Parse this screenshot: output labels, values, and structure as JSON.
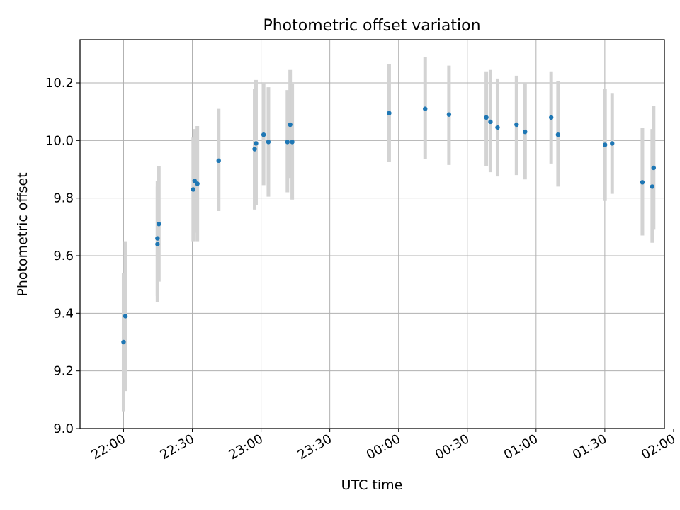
{
  "chart_data": {
    "type": "scatter",
    "title": "Photometric offset variation",
    "xlabel": "UTC time",
    "ylabel": "Photometric offset",
    "grid": true,
    "legend": "none",
    "colors": {
      "point": "#1f77b4",
      "errorbar": "#d3d3d3",
      "grid": "#b0b0b0",
      "axis": "#000000"
    },
    "x_unit": "minutes after 22:00 UTC",
    "xlim": [
      -19,
      236
    ],
    "ylim": [
      9.0,
      10.35
    ],
    "xticks": [
      {
        "label": "22:00",
        "value": 0
      },
      {
        "label": "22:30",
        "value": 30
      },
      {
        "label": "23:00",
        "value": 60
      },
      {
        "label": "23:30",
        "value": 90
      },
      {
        "label": "00:00",
        "value": 120
      },
      {
        "label": "00:30",
        "value": 150
      },
      {
        "label": "01:00",
        "value": 180
      },
      {
        "label": "01:30",
        "value": 210
      },
      {
        "label": "02:00",
        "value": 240
      }
    ],
    "yticks": [
      {
        "label": "9.0",
        "value": 9.0
      },
      {
        "label": "9.2",
        "value": 9.2
      },
      {
        "label": "9.4",
        "value": 9.4
      },
      {
        "label": "9.6",
        "value": 9.6
      },
      {
        "label": "9.8",
        "value": 9.8
      },
      {
        "label": "10.0",
        "value": 10.0
      },
      {
        "label": "10.2",
        "value": 10.2
      }
    ],
    "points": [
      {
        "t": 0.0,
        "y": 9.3,
        "lo": 9.06,
        "hi": 9.54
      },
      {
        "t": 0.8,
        "y": 9.39,
        "lo": 9.13,
        "hi": 9.65
      },
      {
        "t": 14.8,
        "y": 9.66,
        "lo": 9.46,
        "hi": 9.86
      },
      {
        "t": 14.8,
        "y": 9.64,
        "lo": 9.44,
        "hi": 9.84
      },
      {
        "t": 15.4,
        "y": 9.71,
        "lo": 9.51,
        "hi": 9.91
      },
      {
        "t": 30.4,
        "y": 9.83,
        "lo": 9.65,
        "hi": 10.01
      },
      {
        "t": 31.0,
        "y": 9.86,
        "lo": 9.68,
        "hi": 10.04
      },
      {
        "t": 32.2,
        "y": 9.85,
        "lo": 9.65,
        "hi": 10.05
      },
      {
        "t": 41.5,
        "y": 9.93,
        "lo": 9.755,
        "hi": 10.11
      },
      {
        "t": 57.2,
        "y": 9.97,
        "lo": 9.76,
        "hi": 10.18
      },
      {
        "t": 57.8,
        "y": 9.99,
        "lo": 9.775,
        "hi": 10.21
      },
      {
        "t": 61.1,
        "y": 10.02,
        "lo": 9.845,
        "hi": 10.2
      },
      {
        "t": 63.2,
        "y": 9.995,
        "lo": 9.805,
        "hi": 10.185
      },
      {
        "t": 71.5,
        "y": 9.995,
        "lo": 9.82,
        "hi": 10.175
      },
      {
        "t": 72.7,
        "y": 10.055,
        "lo": 9.87,
        "hi": 10.245
      },
      {
        "t": 73.6,
        "y": 9.995,
        "lo": 9.795,
        "hi": 10.195
      },
      {
        "t": 115.9,
        "y": 10.095,
        "lo": 9.925,
        "hi": 10.265
      },
      {
        "t": 131.6,
        "y": 10.11,
        "lo": 9.935,
        "hi": 10.29
      },
      {
        "t": 142.0,
        "y": 10.09,
        "lo": 9.915,
        "hi": 10.26
      },
      {
        "t": 158.3,
        "y": 10.08,
        "lo": 9.91,
        "hi": 10.24
      },
      {
        "t": 160.1,
        "y": 10.065,
        "lo": 9.89,
        "hi": 10.245
      },
      {
        "t": 163.2,
        "y": 10.045,
        "lo": 9.875,
        "hi": 10.215
      },
      {
        "t": 171.5,
        "y": 10.055,
        "lo": 9.88,
        "hi": 10.225
      },
      {
        "t": 175.2,
        "y": 10.03,
        "lo": 9.865,
        "hi": 10.2
      },
      {
        "t": 186.6,
        "y": 10.08,
        "lo": 9.92,
        "hi": 10.24
      },
      {
        "t": 189.6,
        "y": 10.02,
        "lo": 9.84,
        "hi": 10.205
      },
      {
        "t": 210.1,
        "y": 9.985,
        "lo": 9.79,
        "hi": 10.18
      },
      {
        "t": 213.2,
        "y": 9.99,
        "lo": 9.815,
        "hi": 10.165
      },
      {
        "t": 226.4,
        "y": 9.855,
        "lo": 9.67,
        "hi": 10.045
      },
      {
        "t": 230.7,
        "y": 9.84,
        "lo": 9.645,
        "hi": 10.04
      },
      {
        "t": 231.3,
        "y": 9.905,
        "lo": 9.69,
        "hi": 10.12
      }
    ]
  }
}
